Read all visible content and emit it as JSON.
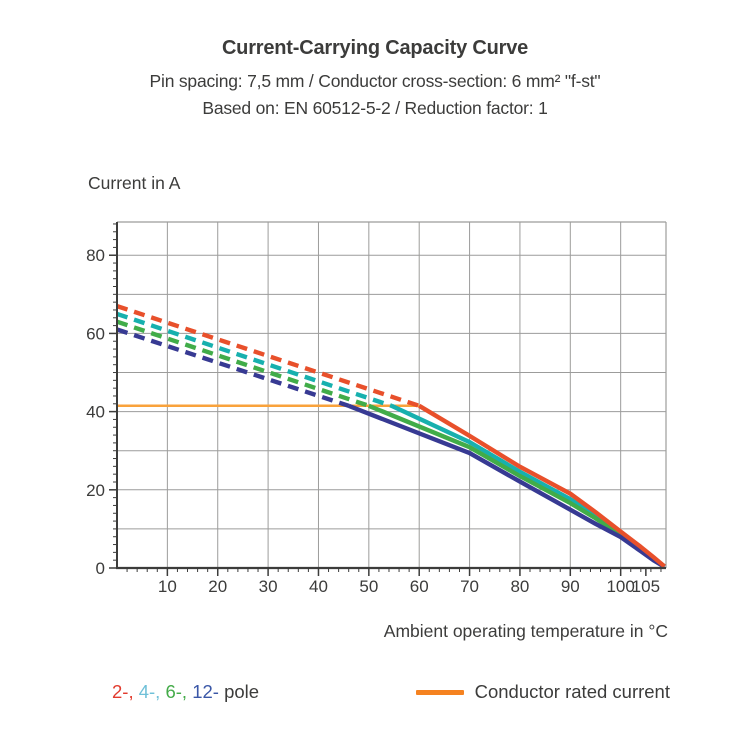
{
  "header": {
    "title": "Current-Carrying Capacity Curve",
    "subtitle_spec": "Pin spacing: 7,5 mm / Conductor cross-section: 6 mm² \"f-st\"",
    "subtitle_basis": "Based on: EN 60512-5-2 / Reduction factor: 1"
  },
  "legend": {
    "poles": [
      {
        "label": "2-",
        "color": "#E23B2E"
      },
      {
        "label": "4-",
        "color": "#6FC0D8"
      },
      {
        "label": "6-",
        "color": "#44AB49"
      },
      {
        "label": "12-",
        "color": "#3A57A7"
      }
    ],
    "pole_suffix": "pole",
    "rated_label": "Conductor rated current",
    "rated_swatch_color": "#F58220"
  },
  "chart_data": {
    "type": "line",
    "title": "Current-Carrying Capacity Curve",
    "xlabel": "Ambient operating temperature in °C",
    "ylabel": "Current in A",
    "xlim": [
      0,
      109
    ],
    "ylim": [
      0,
      88.5
    ],
    "x_major_ticks": [
      10,
      20,
      30,
      40,
      50,
      60,
      70,
      80,
      90,
      100,
      105
    ],
    "y_major_ticks": [
      0,
      20,
      40,
      60,
      80
    ],
    "minor_tick_step": 2,
    "grid_step": 10,
    "grid": true,
    "legend_position": "bottom",
    "colors": {
      "grid": "#9C9C9B",
      "axis": "#3C3C3B",
      "text": "#3C3C3B"
    },
    "rated_current": {
      "name": "Conductor rated current",
      "value": 41.5,
      "x_start": 0,
      "x_end": 60,
      "color": "#F9A23B"
    },
    "series": [
      {
        "name": "4-pole",
        "color": "#17B0AE",
        "dashed": [
          [
            0,
            65
          ],
          [
            54.5,
            41.5
          ]
        ],
        "solid": [
          [
            54.5,
            41.5
          ],
          [
            70,
            32.2
          ],
          [
            80,
            24.6
          ],
          [
            90,
            17.6
          ],
          [
            95,
            13.5
          ],
          [
            100,
            8.9
          ],
          [
            104,
            5.0
          ],
          [
            106.5,
            2.5
          ],
          [
            108.7,
            0.4
          ]
        ]
      },
      {
        "name": "6-pole",
        "color": "#41AC49",
        "dashed": [
          [
            0,
            63
          ],
          [
            50,
            41.5
          ]
        ],
        "solid": [
          [
            50,
            41.5
          ],
          [
            70,
            30.9
          ],
          [
            80,
            23.5
          ],
          [
            90,
            16.6
          ],
          [
            95,
            12.7
          ],
          [
            100,
            8.5
          ],
          [
            104,
            4.7
          ],
          [
            106.5,
            2.2
          ],
          [
            108.7,
            0.4
          ]
        ]
      },
      {
        "name": "12-pole",
        "color": "#373A93",
        "dashed": [
          [
            0,
            61
          ],
          [
            46,
            41.5
          ]
        ],
        "solid": [
          [
            46,
            41.5
          ],
          [
            70,
            29.4
          ],
          [
            80,
            22.1
          ],
          [
            90,
            14.9
          ],
          [
            95,
            11.3
          ],
          [
            100,
            7.9
          ],
          [
            104,
            4.3
          ],
          [
            106.5,
            2.0
          ],
          [
            108.7,
            0.3
          ]
        ]
      },
      {
        "name": "2-pole",
        "color": "#E8502B",
        "dashed": [
          [
            0,
            67
          ],
          [
            60,
            41.5
          ]
        ],
        "solid": [
          [
            60,
            41.5
          ],
          [
            70,
            33.8
          ],
          [
            80,
            25.9
          ],
          [
            90,
            19.0
          ],
          [
            95,
            14.3
          ],
          [
            100,
            9.3
          ],
          [
            104,
            5.4
          ],
          [
            106.5,
            2.8
          ],
          [
            108.7,
            0.4
          ]
        ]
      }
    ]
  }
}
